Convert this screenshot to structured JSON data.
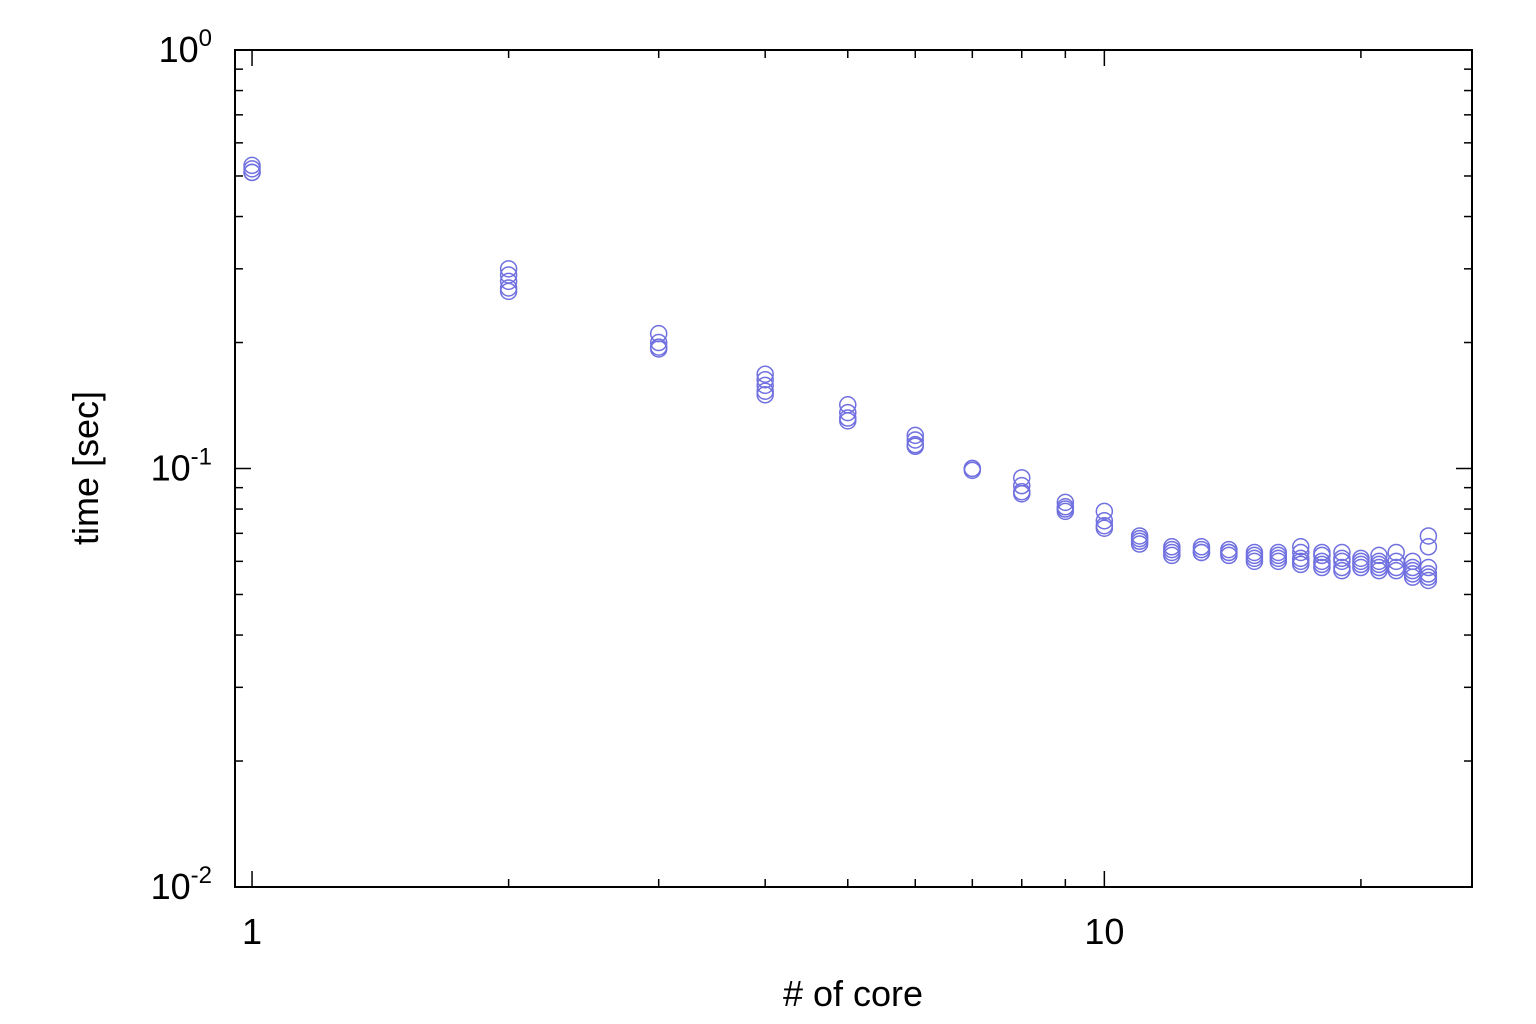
{
  "chart_data": {
    "type": "scatter",
    "title": "",
    "xlabel": "# of core",
    "ylabel": "time [sec]",
    "x_scale": "log",
    "y_scale": "log",
    "xlim": [
      0.955,
      27
    ],
    "ylim": [
      0.01,
      1
    ],
    "grid": false,
    "legend": "none",
    "marker": "open-circle",
    "marker_color": "#7070e0",
    "x_ticks": [
      {
        "value": 1,
        "label": "1"
      },
      {
        "value": 10,
        "label": "10"
      }
    ],
    "y_ticks": [
      {
        "value": 1,
        "base": "10",
        "exp": "0"
      },
      {
        "value": 0.1,
        "base": "10",
        "exp": "-1"
      },
      {
        "value": 0.01,
        "base": "10",
        "exp": "-2"
      }
    ],
    "points": [
      [
        1,
        0.53
      ],
      [
        1,
        0.52
      ],
      [
        1,
        0.51
      ],
      [
        1,
        0.51
      ],
      [
        2,
        0.3
      ],
      [
        2,
        0.29
      ],
      [
        2,
        0.28
      ],
      [
        2,
        0.27
      ],
      [
        2,
        0.265
      ],
      [
        3,
        0.21
      ],
      [
        3,
        0.2
      ],
      [
        3,
        0.195
      ],
      [
        3,
        0.193
      ],
      [
        4,
        0.168
      ],
      [
        4,
        0.163
      ],
      [
        4,
        0.158
      ],
      [
        4,
        0.153
      ],
      [
        4,
        0.15
      ],
      [
        5,
        0.142
      ],
      [
        5,
        0.136
      ],
      [
        5,
        0.132
      ],
      [
        5,
        0.13
      ],
      [
        6,
        0.12
      ],
      [
        6,
        0.117
      ],
      [
        6,
        0.114
      ],
      [
        6,
        0.113
      ],
      [
        7,
        0.1
      ],
      [
        7,
        0.1
      ],
      [
        7,
        0.099
      ],
      [
        8,
        0.095
      ],
      [
        8,
        0.091
      ],
      [
        8,
        0.088
      ],
      [
        8,
        0.087
      ],
      [
        9,
        0.083
      ],
      [
        9,
        0.081
      ],
      [
        9,
        0.08
      ],
      [
        9,
        0.079
      ],
      [
        10,
        0.079
      ],
      [
        10,
        0.075
      ],
      [
        10,
        0.073
      ],
      [
        10,
        0.072
      ],
      [
        11,
        0.069
      ],
      [
        11,
        0.068
      ],
      [
        11,
        0.067
      ],
      [
        11,
        0.066
      ],
      [
        12,
        0.065
      ],
      [
        12,
        0.064
      ],
      [
        12,
        0.063
      ],
      [
        12,
        0.062
      ],
      [
        13,
        0.065
      ],
      [
        13,
        0.064
      ],
      [
        13,
        0.063
      ],
      [
        13,
        0.063
      ],
      [
        14,
        0.064
      ],
      [
        14,
        0.063
      ],
      [
        14,
        0.063
      ],
      [
        14,
        0.062
      ],
      [
        15,
        0.063
      ],
      [
        15,
        0.062
      ],
      [
        15,
        0.061
      ],
      [
        15,
        0.06
      ],
      [
        16,
        0.063
      ],
      [
        16,
        0.062
      ],
      [
        16,
        0.061
      ],
      [
        16,
        0.06
      ],
      [
        17,
        0.065
      ],
      [
        17,
        0.063
      ],
      [
        17,
        0.061
      ],
      [
        17,
        0.06
      ],
      [
        17,
        0.059
      ],
      [
        18,
        0.063
      ],
      [
        18,
        0.062
      ],
      [
        18,
        0.06
      ],
      [
        18,
        0.059
      ],
      [
        18,
        0.058
      ],
      [
        19,
        0.063
      ],
      [
        19,
        0.061
      ],
      [
        19,
        0.06
      ],
      [
        19,
        0.058
      ],
      [
        19,
        0.057
      ],
      [
        20,
        0.061
      ],
      [
        20,
        0.06
      ],
      [
        20,
        0.059
      ],
      [
        20,
        0.058
      ],
      [
        21,
        0.062
      ],
      [
        21,
        0.06
      ],
      [
        21,
        0.059
      ],
      [
        21,
        0.058
      ],
      [
        21,
        0.057
      ],
      [
        22,
        0.063
      ],
      [
        22,
        0.06
      ],
      [
        22,
        0.058
      ],
      [
        22,
        0.057
      ],
      [
        23,
        0.06
      ],
      [
        23,
        0.058
      ],
      [
        23,
        0.057
      ],
      [
        23,
        0.056
      ],
      [
        23,
        0.055
      ],
      [
        24,
        0.069
      ],
      [
        24,
        0.065
      ],
      [
        24,
        0.058
      ],
      [
        24,
        0.056
      ],
      [
        24,
        0.055
      ],
      [
        24,
        0.054
      ]
    ]
  }
}
